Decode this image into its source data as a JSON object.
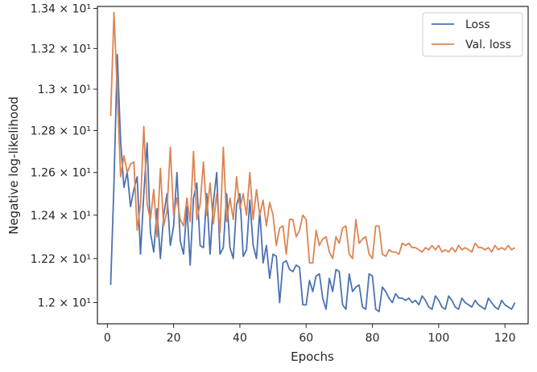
{
  "chart_data": {
    "type": "line",
    "xlabel": "Epochs",
    "ylabel": "Negative log-likelihood",
    "xlim": [
      -3,
      127
    ],
    "ylim": [
      11.905,
      13.41
    ],
    "x_ticks": [
      0,
      20,
      40,
      60,
      80,
      100,
      120
    ],
    "x_tick_labels": [
      "0",
      "20",
      "40",
      "60",
      "80",
      "100",
      "120"
    ],
    "y_ticks": [
      12.0,
      12.2,
      12.4,
      12.6,
      12.8,
      13.0,
      13.2,
      13.4
    ],
    "y_tick_labels": [
      "1.2 × 10¹",
      "1.22 × 10¹",
      "1.24 × 10¹",
      "1.26 × 10¹",
      "1.28 × 10¹",
      "1.3 × 10¹",
      "1.32 × 10¹",
      "1.34 × 10¹"
    ],
    "y_scale": "log",
    "grid": false,
    "legend": {
      "placement": "top-right"
    },
    "x": [
      1,
      2,
      3,
      4,
      5,
      6,
      7,
      8,
      9,
      10,
      11,
      12,
      13,
      14,
      15,
      16,
      17,
      18,
      19,
      20,
      21,
      22,
      23,
      24,
      25,
      26,
      27,
      28,
      29,
      30,
      31,
      32,
      33,
      34,
      35,
      36,
      37,
      38,
      39,
      40,
      41,
      42,
      43,
      44,
      45,
      46,
      47,
      48,
      49,
      50,
      51,
      52,
      53,
      54,
      55,
      56,
      57,
      58,
      59,
      60,
      61,
      62,
      63,
      64,
      65,
      66,
      67,
      68,
      69,
      70,
      71,
      72,
      73,
      74,
      75,
      76,
      77,
      78,
      79,
      80,
      81,
      82,
      83,
      84,
      85,
      86,
      87,
      88,
      89,
      90,
      91,
      92,
      93,
      94,
      95,
      96,
      97,
      98,
      99,
      100,
      101,
      102,
      103,
      104,
      105,
      106,
      107,
      108,
      109,
      110,
      111,
      112,
      113,
      114,
      115,
      116,
      117,
      118,
      119,
      120,
      121,
      122,
      123
    ],
    "series": [
      {
        "name": "Loss",
        "color": "#4c72b0",
        "values": [
          12.08,
          12.55,
          13.17,
          12.75,
          12.53,
          12.6,
          12.44,
          12.52,
          12.58,
          12.22,
          12.5,
          12.74,
          12.32,
          12.23,
          12.43,
          12.2,
          12.4,
          12.5,
          12.26,
          12.35,
          12.6,
          12.28,
          12.22,
          12.44,
          12.17,
          12.48,
          12.55,
          12.26,
          12.25,
          12.5,
          12.22,
          12.46,
          12.6,
          12.22,
          12.25,
          12.5,
          12.25,
          12.2,
          12.45,
          12.5,
          12.21,
          12.24,
          12.47,
          12.26,
          12.2,
          12.42,
          12.18,
          12.26,
          12.11,
          12.22,
          12.21,
          12.0,
          12.18,
          12.19,
          12.15,
          12.14,
          12.17,
          12.16,
          11.99,
          11.99,
          12.1,
          12.05,
          12.12,
          12.13,
          12.02,
          11.97,
          12.11,
          12.05,
          12.15,
          12.14,
          11.99,
          11.97,
          12.13,
          12.05,
          12.07,
          12.08,
          11.98,
          11.97,
          12.13,
          12.12,
          11.97,
          11.96,
          12.07,
          12.05,
          12.02,
          12.0,
          12.04,
          12.02,
          12.02,
          12.01,
          12.02,
          12.0,
          12.01,
          11.99,
          12.03,
          12.01,
          11.98,
          11.97,
          12.03,
          12.01,
          11.98,
          11.97,
          12.03,
          12.01,
          11.98,
          11.97,
          12.02,
          12.0,
          11.99,
          11.98,
          12.01,
          11.99,
          11.98,
          11.97,
          12.02,
          12.0,
          11.98,
          11.97,
          12.01,
          11.99,
          11.98,
          11.97,
          12.0
        ]
      },
      {
        "name": "Val. loss",
        "color": "#dd8452",
        "values": [
          12.87,
          13.38,
          12.98,
          12.58,
          12.68,
          12.6,
          12.64,
          12.65,
          12.33,
          12.45,
          12.82,
          12.45,
          12.38,
          12.52,
          12.3,
          12.62,
          12.35,
          12.42,
          12.72,
          12.4,
          12.48,
          12.38,
          12.35,
          12.48,
          12.37,
          12.7,
          12.38,
          12.45,
          12.65,
          12.4,
          12.55,
          12.36,
          12.5,
          12.32,
          12.72,
          12.37,
          12.48,
          12.38,
          12.58,
          12.43,
          12.5,
          12.4,
          12.6,
          12.38,
          12.52,
          12.4,
          12.47,
          12.35,
          12.46,
          12.4,
          12.26,
          12.34,
          12.35,
          12.22,
          12.38,
          12.38,
          12.3,
          12.33,
          12.4,
          12.38,
          12.18,
          12.18,
          12.33,
          12.26,
          12.29,
          12.3,
          12.23,
          12.2,
          12.3,
          12.27,
          12.34,
          12.35,
          12.22,
          12.2,
          12.38,
          12.27,
          12.29,
          12.3,
          12.22,
          12.2,
          12.35,
          12.35,
          12.22,
          12.21,
          12.24,
          12.23,
          12.23,
          12.22,
          12.27,
          12.26,
          12.27,
          12.25,
          12.25,
          12.24,
          12.23,
          12.25,
          12.24,
          12.26,
          12.24,
          12.26,
          12.23,
          12.24,
          12.23,
          12.25,
          12.23,
          12.26,
          12.24,
          12.25,
          12.24,
          12.23,
          12.27,
          12.25,
          12.25,
          12.24,
          12.25,
          12.23,
          12.26,
          12.24,
          12.25,
          12.24,
          12.26,
          12.24,
          12.25
        ]
      }
    ]
  }
}
